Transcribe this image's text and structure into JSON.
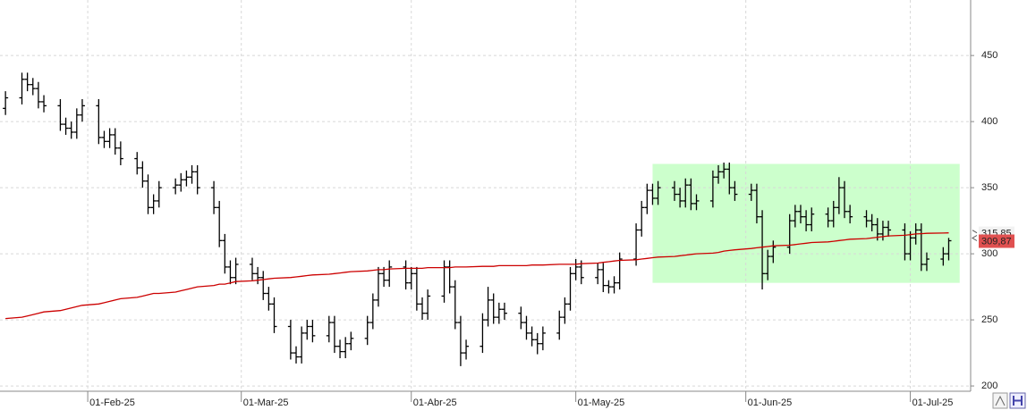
{
  "chart_data": {
    "type": "ohlc",
    "x": [
      "2025-01-17",
      "2025-01-20",
      "2025-01-21",
      "2025-01-22",
      "2025-01-23",
      "2025-01-24",
      "2025-01-27",
      "2025-01-28",
      "2025-01-29",
      "2025-01-30",
      "2025-01-31",
      "2025-02-03",
      "2025-02-04",
      "2025-02-05",
      "2025-02-06",
      "2025-02-07",
      "2025-02-10",
      "2025-02-11",
      "2025-02-12",
      "2025-02-13",
      "2025-02-14",
      "2025-02-17",
      "2025-02-18",
      "2025-02-19",
      "2025-02-20",
      "2025-02-21",
      "2025-02-24",
      "2025-02-25",
      "2025-02-26",
      "2025-02-27",
      "2025-02-28",
      "2025-03-03",
      "2025-03-04",
      "2025-03-05",
      "2025-03-06",
      "2025-03-07",
      "2025-03-10",
      "2025-03-11",
      "2025-03-12",
      "2025-03-13",
      "2025-03-14",
      "2025-03-17",
      "2025-03-18",
      "2025-03-19",
      "2025-03-20",
      "2025-03-21",
      "2025-03-24",
      "2025-03-25",
      "2025-03-26",
      "2025-03-27",
      "2025-03-28",
      "2025-03-31",
      "2025-04-01",
      "2025-04-02",
      "2025-04-03",
      "2025-04-04",
      "2025-04-07",
      "2025-04-08",
      "2025-04-09",
      "2025-04-10",
      "2025-04-11",
      "2025-04-14",
      "2025-04-15",
      "2025-04-16",
      "2025-04-17",
      "2025-04-18",
      "2025-04-21",
      "2025-04-22",
      "2025-04-23",
      "2025-04-24",
      "2025-04-25",
      "2025-04-28",
      "2025-04-29",
      "2025-04-30",
      "2025-05-01",
      "2025-05-02",
      "2025-05-05",
      "2025-05-06",
      "2025-05-07",
      "2025-05-08",
      "2025-05-09",
      "2025-05-12",
      "2025-05-13",
      "2025-05-14",
      "2025-05-15",
      "2025-05-16",
      "2025-05-19",
      "2025-05-20",
      "2025-05-21",
      "2025-05-22",
      "2025-05-23",
      "2025-05-26",
      "2025-05-27",
      "2025-05-28",
      "2025-05-29",
      "2025-05-30",
      "2025-06-02",
      "2025-06-03",
      "2025-06-04",
      "2025-06-05",
      "2025-06-06",
      "2025-06-09",
      "2025-06-10",
      "2025-06-11",
      "2025-06-12",
      "2025-06-13",
      "2025-06-16",
      "2025-06-17",
      "2025-06-18",
      "2025-06-19",
      "2025-06-20",
      "2025-06-23",
      "2025-06-24",
      "2025-06-25",
      "2025-06-26",
      "2025-06-27",
      "2025-06-30",
      "2025-07-01",
      "2025-07-02",
      "2025-07-03",
      "2025-07-04",
      "2025-07-07",
      "2025-07-08"
    ],
    "open": [
      410,
      418,
      432,
      428,
      425,
      415,
      412,
      398,
      395,
      392,
      405,
      412,
      388,
      385,
      390,
      380,
      372,
      365,
      355,
      335,
      340,
      350,
      352,
      356,
      358,
      362,
      350,
      335,
      310,
      290,
      282,
      292,
      285,
      282,
      270,
      262,
      245,
      225,
      222,
      240,
      245,
      238,
      248,
      230,
      226,
      232,
      236,
      248,
      265,
      285,
      280,
      290,
      278,
      285,
      262,
      255,
      268,
      290,
      275,
      248,
      225,
      230,
      250,
      265,
      252,
      258,
      255,
      248,
      240,
      235,
      232,
      240,
      252,
      262,
      285,
      290,
      282,
      288,
      276,
      275,
      278,
      296,
      318,
      335,
      348,
      342,
      350,
      345,
      340,
      352,
      338,
      340,
      358,
      362,
      364,
      350,
      345,
      348,
      328,
      285,
      298,
      305,
      325,
      332,
      328,
      322,
      330,
      325,
      335,
      350,
      332,
      328,
      325,
      322,
      315,
      320,
      318,
      300,
      312,
      318,
      292,
      296,
      300
    ],
    "high": [
      423,
      437,
      437,
      433,
      430,
      420,
      417,
      403,
      400,
      410,
      417,
      417,
      393,
      395,
      395,
      385,
      377,
      370,
      360,
      345,
      355,
      357,
      361,
      363,
      367,
      367,
      355,
      340,
      315,
      295,
      297,
      297,
      290,
      287,
      275,
      267,
      250,
      230,
      245,
      250,
      250,
      253,
      253,
      235,
      237,
      241,
      253,
      270,
      290,
      290,
      295,
      295,
      290,
      290,
      267,
      273,
      295,
      295,
      280,
      253,
      235,
      255,
      275,
      270,
      263,
      263,
      260,
      253,
      245,
      240,
      245,
      257,
      267,
      290,
      296,
      295,
      293,
      293,
      280,
      283,
      301,
      323,
      340,
      353,
      353,
      355,
      355,
      350,
      357,
      357,
      345,
      363,
      367,
      369,
      369,
      355,
      353,
      353,
      333,
      303,
      310,
      330,
      337,
      337,
      333,
      335,
      335,
      340,
      358,
      355,
      337,
      333,
      330,
      327,
      325,
      325,
      323,
      317,
      323,
      323,
      301,
      305,
      312
    ],
    "low": [
      405,
      413,
      423,
      420,
      410,
      407,
      393,
      390,
      387,
      387,
      400,
      383,
      380,
      380,
      375,
      367,
      360,
      350,
      330,
      330,
      335,
      345,
      347,
      351,
      353,
      345,
      330,
      305,
      285,
      277,
      277,
      280,
      277,
      265,
      257,
      240,
      220,
      217,
      217,
      235,
      233,
      233,
      225,
      221,
      221,
      227,
      231,
      243,
      260,
      275,
      275,
      273,
      273,
      257,
      250,
      250,
      263,
      270,
      243,
      215,
      220,
      225,
      245,
      247,
      247,
      250,
      243,
      235,
      230,
      224,
      227,
      235,
      247,
      257,
      280,
      277,
      277,
      271,
      270,
      270,
      273,
      291,
      313,
      330,
      337,
      337,
      340,
      335,
      335,
      333,
      333,
      335,
      353,
      357,
      345,
      340,
      340,
      323,
      273,
      280,
      293,
      300,
      320,
      323,
      317,
      317,
      320,
      320,
      330,
      327,
      323,
      320,
      317,
      310,
      310,
      313,
      295,
      295,
      307,
      287,
      287,
      291,
      295
    ],
    "close": [
      418,
      432,
      428,
      425,
      415,
      412,
      398,
      395,
      392,
      405,
      412,
      388,
      385,
      390,
      380,
      372,
      365,
      355,
      335,
      340,
      350,
      352,
      356,
      358,
      362,
      350,
      335,
      310,
      290,
      282,
      292,
      285,
      282,
      270,
      262,
      245,
      225,
      222,
      240,
      245,
      238,
      248,
      230,
      226,
      232,
      236,
      248,
      265,
      285,
      280,
      290,
      278,
      285,
      262,
      255,
      268,
      290,
      275,
      248,
      225,
      230,
      250,
      265,
      252,
      258,
      255,
      248,
      240,
      235,
      232,
      240,
      252,
      262,
      285,
      290,
      282,
      288,
      276,
      275,
      278,
      296,
      318,
      335,
      348,
      342,
      350,
      345,
      340,
      352,
      338,
      340,
      358,
      362,
      364,
      350,
      345,
      348,
      328,
      285,
      298,
      305,
      325,
      332,
      328,
      322,
      330,
      325,
      335,
      350,
      332,
      328,
      325,
      322,
      315,
      320,
      318,
      300,
      312,
      318,
      292,
      296,
      300,
      309.87
    ],
    "color": "#000000",
    "moving_average": {
      "color": "#cc0000",
      "values": [
        251,
        252,
        253,
        254,
        255,
        256,
        257,
        258,
        259,
        260,
        261,
        262,
        263,
        264,
        265,
        266,
        267,
        268,
        269,
        270,
        270,
        271,
        272,
        273,
        274,
        275,
        276,
        277,
        277,
        278,
        279,
        279.5,
        280,
        280.5,
        281,
        281.5,
        282,
        282.5,
        283,
        283.5,
        284,
        284.5,
        285,
        285.5,
        286,
        286.5,
        287,
        287.5,
        288,
        288,
        288.5,
        289,
        289,
        289,
        289,
        289.5,
        289.5,
        289.5,
        290,
        290,
        290,
        290.5,
        290.5,
        290.5,
        291,
        291,
        291,
        291,
        291.5,
        291.5,
        291.5,
        292,
        292,
        292,
        292,
        292.5,
        293,
        293.5,
        294,
        294.5,
        295,
        295.5,
        296,
        296.5,
        297,
        297.5,
        298,
        298.5,
        299,
        299.5,
        300,
        300.5,
        301,
        302,
        302.5,
        303,
        304,
        304.5,
        305,
        305.5,
        306,
        306.5,
        307,
        307.5,
        308,
        308.5,
        309,
        309.5,
        310,
        310.5,
        311,
        311.5,
        312,
        312.5,
        313,
        313.5,
        314,
        314.5,
        315,
        315.2,
        315.5,
        315.7,
        315.85
      ]
    },
    "highlight": {
      "color": "#ccffcc",
      "x": [
        "2025-05-15",
        "2025-07-10"
      ],
      "y": [
        278,
        368
      ]
    },
    "last_price": {
      "value": 309.87,
      "label": "309,87",
      "color": "#e05050"
    },
    "ma_last": {
      "value": 315.85,
      "label": "315,85"
    },
    "xlim": [
      "2025-01-16",
      "2025-07-12"
    ],
    "xticks": [
      {
        "value": "2025-02-01",
        "label": "01-Feb-25"
      },
      {
        "value": "2025-03-01",
        "label": "01-Mar-25"
      },
      {
        "value": "2025-04-01",
        "label": "01-Abr-25"
      },
      {
        "value": "2025-05-01",
        "label": "01-May-25"
      },
      {
        "value": "2025-06-01",
        "label": "01-Jun-25"
      },
      {
        "value": "2025-07-01",
        "label": "01-Jul-25"
      }
    ],
    "ylim": [
      196,
      492
    ],
    "yticks": [
      200,
      250,
      300,
      350,
      400,
      450
    ],
    "grid": true
  }
}
